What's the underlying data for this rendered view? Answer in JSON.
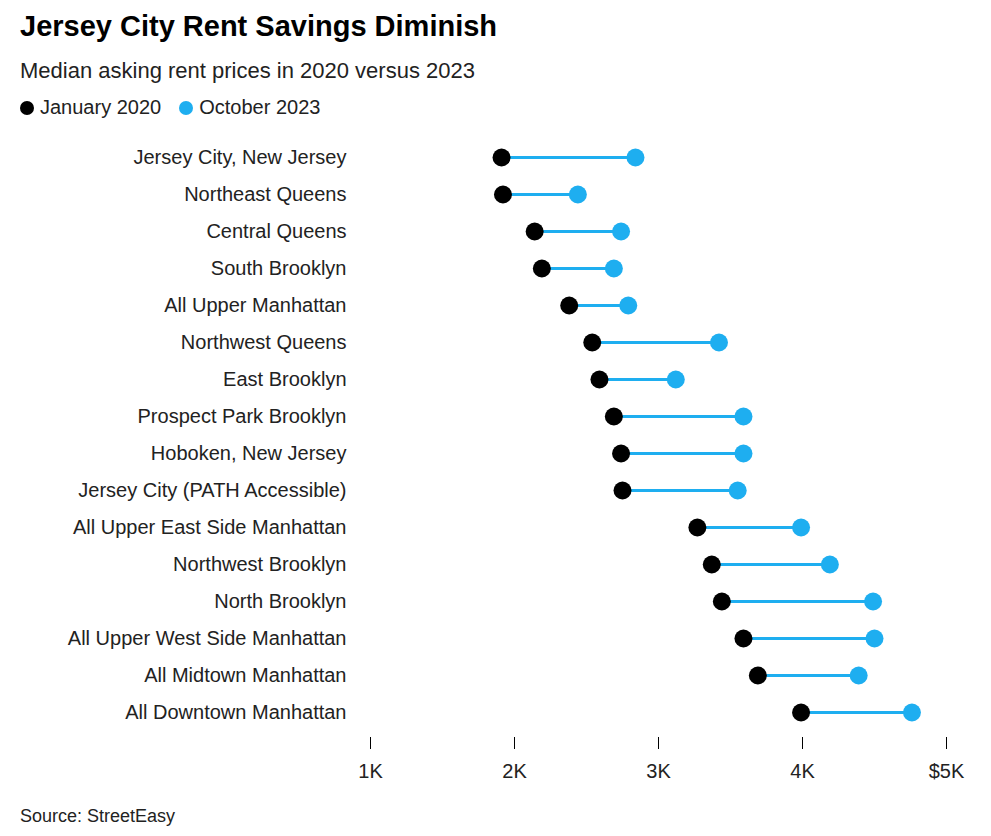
{
  "chart_data": {
    "type": "dumbbell",
    "title": "Jersey City Rent Savings Diminish",
    "subtitle": "Median asking rent prices in 2020 versus 2023",
    "source": "Source: StreetEasy",
    "orientation": "horizontal",
    "grid": false,
    "categories": [
      "Jersey City, New Jersey",
      "Northeast Queens",
      "Central Queens",
      "South Brooklyn",
      "All Upper Manhattan",
      "Northwest Queens",
      "East Brooklyn",
      "Prospect Park Brooklyn",
      "Hoboken, New Jersey",
      "Jersey City (PATH Accessible)",
      "All Upper East Side Manhattan",
      "Northwest Brooklyn",
      "North Brooklyn",
      "All Upper West Side Manhattan",
      "All Midtown Manhattan",
      "All Downtown Manhattan"
    ],
    "series": [
      {
        "name": "January 2020",
        "color": "#000000",
        "values": [
          1910,
          1920,
          2140,
          2190,
          2380,
          2540,
          2590,
          2690,
          2740,
          2750,
          3270,
          3370,
          3440,
          3590,
          3690,
          3990
        ]
      },
      {
        "name": "October 2023",
        "color": "#1eaef0",
        "values": [
          2840,
          2440,
          2740,
          2690,
          2790,
          3420,
          3120,
          3590,
          3590,
          3550,
          3990,
          4190,
          4490,
          4500,
          4390,
          4760
        ]
      }
    ],
    "xlim": [
      1000,
      5000
    ],
    "xticks": [
      {
        "value": 1000,
        "label": "1K"
      },
      {
        "value": 2000,
        "label": "2K"
      },
      {
        "value": 3000,
        "label": "3K"
      },
      {
        "value": 4000,
        "label": "4K"
      },
      {
        "value": 5000,
        "label": "$5K"
      }
    ]
  }
}
